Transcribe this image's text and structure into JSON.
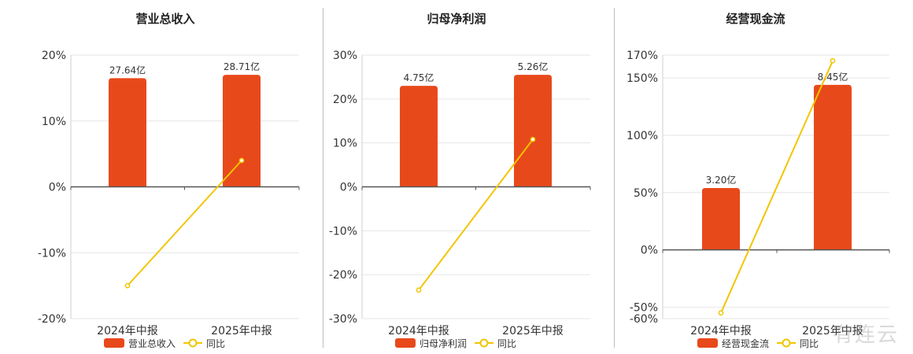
{
  "colors": {
    "bar": "#e8491b",
    "line": "#f2c500",
    "grid": "#e6e6e6",
    "axis": "#555555",
    "text": "#333333"
  },
  "watermark": "有连云",
  "chart_data": [
    {
      "type": "bar",
      "title": "营业总收入",
      "categories": [
        "2024年中报",
        "2025年中报"
      ],
      "bar_values": [
        16.5,
        17.0
      ],
      "bar_labels": [
        "27.64亿",
        "28.71亿"
      ],
      "line_values": [
        -15.0,
        4.0
      ],
      "ylim": [
        -20,
        20
      ],
      "yticks": [
        -20,
        -10,
        0,
        10,
        20
      ],
      "ytick_labels": [
        "-20%",
        "-10%",
        "0%",
        "10%",
        "20%"
      ],
      "legend": {
        "bar": "营业总收入",
        "line": "同比"
      }
    },
    {
      "type": "bar",
      "title": "归母净利润",
      "categories": [
        "2024年中报",
        "2025年中报"
      ],
      "bar_values": [
        23.0,
        25.5
      ],
      "bar_labels": [
        "4.75亿",
        "5.26亿"
      ],
      "line_values": [
        -23.5,
        10.8
      ],
      "ylim": [
        -30,
        30
      ],
      "yticks": [
        -30,
        -20,
        -10,
        0,
        10,
        20,
        30
      ],
      "ytick_labels": [
        "-30%",
        "-20%",
        "-10%",
        "0%",
        "10%",
        "20%",
        "30%"
      ],
      "legend": {
        "bar": "归母净利润",
        "line": "同比"
      }
    },
    {
      "type": "bar",
      "title": "经营现金流",
      "categories": [
        "2024年中报",
        "2025年中报"
      ],
      "bar_values": [
        54.0,
        144.0
      ],
      "bar_labels": [
        "3.20亿",
        "8.45亿"
      ],
      "line_values": [
        -55.0,
        165.0
      ],
      "ylim": [
        -60,
        170
      ],
      "yticks": [
        -60,
        -50,
        0,
        50,
        100,
        150,
        170
      ],
      "ytick_labels": [
        "-60%",
        "-50%",
        "0%",
        "50%",
        "100%",
        "150%",
        "170%"
      ],
      "legend": {
        "bar": "经营现金流",
        "line": "同比"
      }
    }
  ]
}
